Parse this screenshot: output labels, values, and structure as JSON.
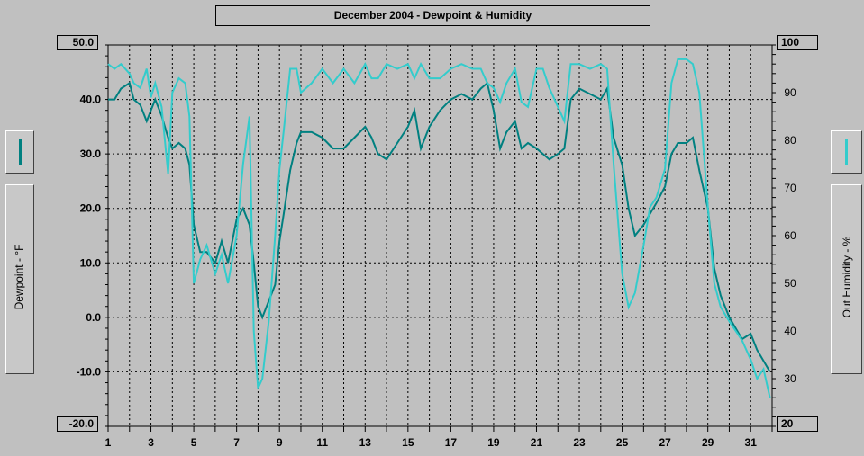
{
  "title": "December 2004 - Dewpoint & Humidity",
  "left_axis": {
    "label": "Dewpoint - °F",
    "max_label": "50.0",
    "min_label": "-20.0",
    "ticks": [
      "40.0",
      "30.0",
      "20.0",
      "10.0",
      "0.0",
      "-10.0"
    ]
  },
  "right_axis": {
    "label": "Out Humidity - %",
    "max_label": "100",
    "min_label": "20",
    "ticks": [
      "90",
      "80",
      "70",
      "60",
      "50",
      "40",
      "30"
    ]
  },
  "colors": {
    "dewpoint": "#008080",
    "humidity": "#33cccc",
    "background": "#c0c0c0",
    "grid": "#000000"
  },
  "chart_data": {
    "type": "line",
    "title": "December 2004 - Dewpoint & Humidity",
    "xlabel": "",
    "x_ticks": [
      "1",
      "3",
      "5",
      "7",
      "9",
      "11",
      "13",
      "15",
      "17",
      "19",
      "21",
      "23",
      "25",
      "27",
      "29",
      "31"
    ],
    "xlim": [
      1,
      32
    ],
    "grid": true,
    "series": [
      {
        "name": "Dewpoint - °F",
        "axis": "left",
        "ylim": [
          -20,
          50
        ],
        "x": [
          1,
          1.3,
          1.6,
          2,
          2.2,
          2.5,
          2.8,
          3,
          3.2,
          3.5,
          3.8,
          4,
          4.3,
          4.6,
          4.8,
          5,
          5.3,
          5.6,
          6,
          6.3,
          6.6,
          7,
          7.3,
          7.6,
          7.8,
          8,
          8.2,
          8.5,
          8.8,
          9,
          9.2,
          9.5,
          9.8,
          10,
          10.5,
          11,
          11.5,
          12,
          12.5,
          13,
          13.3,
          13.6,
          14,
          14.5,
          15,
          15.3,
          15.6,
          16,
          16.5,
          17,
          17.5,
          18,
          18.4,
          18.7,
          19,
          19.3,
          19.6,
          20,
          20.3,
          20.6,
          21,
          21.3,
          21.6,
          22,
          22.3,
          22.6,
          23,
          23.5,
          24,
          24.3,
          24.6,
          25,
          25.3,
          25.6,
          26,
          26.3,
          26.6,
          27,
          27.3,
          27.6,
          28,
          28.3,
          28.6,
          29,
          29.3,
          29.6,
          30,
          30.3,
          30.6,
          31,
          31.3,
          31.6,
          31.9
        ],
        "y": [
          40,
          40,
          42,
          43,
          40,
          39,
          36,
          38,
          40,
          37,
          33,
          31,
          32,
          31,
          28,
          17,
          12,
          12,
          10,
          14,
          10,
          18,
          20,
          17,
          10,
          2,
          0,
          3,
          6,
          14,
          19,
          27,
          32,
          34,
          34,
          33,
          31,
          31,
          33,
          35,
          33,
          30,
          29,
          32,
          35,
          38,
          31,
          35,
          38,
          40,
          41,
          40,
          42,
          43,
          38,
          31,
          34,
          36,
          31,
          32,
          31,
          30,
          29,
          30,
          31,
          40,
          42,
          41,
          40,
          42,
          33,
          28,
          20,
          15,
          17,
          19,
          21,
          24,
          30,
          32,
          32,
          33,
          27,
          20,
          9,
          4,
          0,
          -2,
          -4,
          -3,
          -6,
          -8,
          -10
        ]
      },
      {
        "name": "Out Humidity - %",
        "axis": "right",
        "ylim": [
          20,
          100
        ],
        "x": [
          1,
          1.3,
          1.6,
          2,
          2.2,
          2.5,
          2.8,
          3,
          3.2,
          3.5,
          3.8,
          4,
          4.3,
          4.6,
          4.8,
          5,
          5.3,
          5.6,
          6,
          6.3,
          6.6,
          7,
          7.3,
          7.6,
          7.8,
          8,
          8.2,
          8.5,
          8.8,
          9,
          9.2,
          9.5,
          9.8,
          10,
          10.5,
          11,
          11.5,
          12,
          12.5,
          13,
          13.3,
          13.6,
          14,
          14.5,
          15,
          15.3,
          15.6,
          16,
          16.5,
          17,
          17.5,
          18,
          18.4,
          18.7,
          19,
          19.3,
          19.6,
          20,
          20.3,
          20.6,
          21,
          21.3,
          21.6,
          22,
          22.3,
          22.6,
          23,
          23.5,
          24,
          24.3,
          24.6,
          25,
          25.3,
          25.6,
          26,
          26.3,
          26.6,
          27,
          27.3,
          27.6,
          28,
          28.3,
          28.6,
          29,
          29.3,
          29.6,
          30,
          30.3,
          30.6,
          31,
          31.3,
          31.6,
          31.9
        ],
        "y": [
          96,
          95,
          96,
          94,
          92,
          91,
          95,
          89,
          92,
          87,
          73,
          90,
          93,
          92,
          85,
          50,
          55,
          58,
          52,
          56,
          50,
          60,
          75,
          85,
          40,
          28,
          30,
          42,
          60,
          74,
          82,
          95,
          95,
          90,
          92,
          95,
          92,
          95,
          92,
          96,
          93,
          93,
          96,
          95,
          96,
          93,
          96,
          93,
          93,
          95,
          96,
          95,
          95,
          92,
          91,
          88,
          92,
          95,
          88,
          87,
          95,
          95,
          91,
          87,
          84,
          96,
          96,
          95,
          96,
          95,
          75,
          52,
          45,
          48,
          58,
          66,
          68,
          74,
          92,
          97,
          97,
          96,
          90,
          66,
          50,
          45,
          42,
          40,
          38,
          34,
          30,
          32,
          26
        ]
      }
    ]
  }
}
